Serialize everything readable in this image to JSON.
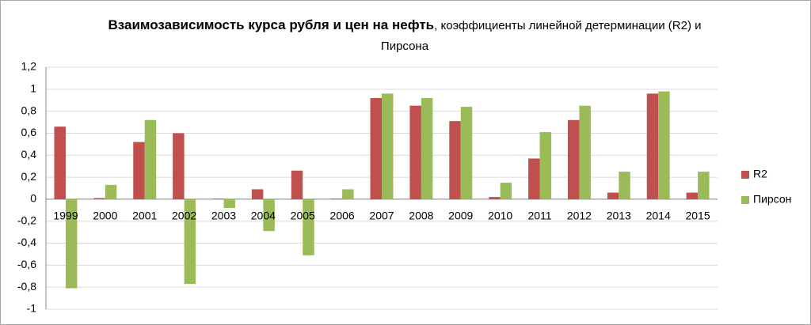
{
  "chart_data": {
    "type": "bar",
    "title": "Взаимозависимость курса рубля и цен на нефть",
    "subtitle": ", коэффициенты линейной детерминации (R2) и Пирсона",
    "categories": [
      "1999",
      "2000",
      "2001",
      "2002",
      "2003",
      "2004",
      "2005",
      "2006",
      "2007",
      "2008",
      "2009",
      "2010",
      "2011",
      "2012",
      "2013",
      "2014",
      "2015"
    ],
    "series": [
      {
        "name": "R2",
        "color": "#c0504d",
        "values": [
          0.66,
          0.01,
          0.52,
          0.6,
          0.005,
          0.09,
          0.26,
          0.005,
          0.92,
          0.85,
          0.71,
          0.02,
          0.37,
          0.72,
          0.06,
          0.96,
          0.06
        ]
      },
      {
        "name": "Пирсон",
        "color": "#9bbb59",
        "values": [
          -0.81,
          0.13,
          0.72,
          -0.77,
          -0.08,
          -0.29,
          -0.51,
          0.09,
          0.96,
          0.92,
          0.84,
          0.15,
          0.61,
          0.85,
          0.25,
          0.98,
          0.25
        ]
      }
    ],
    "ylim": [
      -1,
      1.2
    ],
    "yticks": [
      {
        "value": 1.2,
        "label": "1,2"
      },
      1,
      {
        "value": 0.8,
        "label": "0,8"
      },
      {
        "value": 0.6,
        "label": "0,6"
      },
      {
        "value": 0.4,
        "label": "0,4"
      },
      {
        "value": 0.2,
        "label": "0,2"
      },
      0,
      {
        "value": -0.2,
        "label": "-0,2"
      },
      {
        "value": -0.4,
        "label": "-0,4"
      },
      {
        "value": -0.6,
        "label": "-0,6"
      },
      {
        "value": -0.8,
        "label": "-0,8"
      },
      -1
    ],
    "grid": true,
    "legend": "right"
  }
}
